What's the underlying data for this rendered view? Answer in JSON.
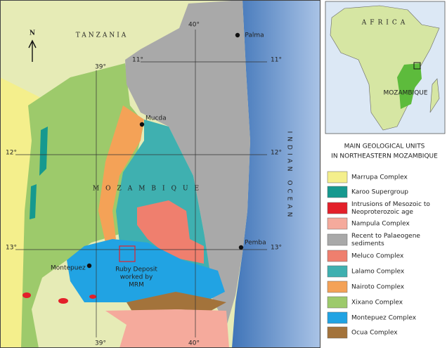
{
  "map": {
    "country_labels": {
      "tanzania": "TANZANIA",
      "mozambique": "MOZAMBIQUE",
      "ocean": "INDIAN OCEAN"
    },
    "north": "N",
    "grid_labels": {
      "top_40": "40°",
      "top_39": "39°",
      "lat_11_left": "11°",
      "lat_11_right": "11°",
      "lat_12_left": "12°",
      "lat_12_right": "12°",
      "lat_13_left": "13°",
      "lat_13_right": "13°",
      "bottom_39": "39°",
      "bottom_40": "40°"
    },
    "cities": [
      "Palma",
      "Mucda",
      "Pemba",
      "Montepuez"
    ],
    "ruby_deposit": [
      "Ruby Deposit",
      "worked by",
      "MRM"
    ]
  },
  "inset": {
    "continent": "AFRICA",
    "country": "MOZAMBIQUE"
  },
  "legend": {
    "title": [
      "MAIN GEOLOGICAL UNITS",
      "IN NORTHEASTERN MOZAMBIQUE"
    ],
    "items": [
      {
        "label": [
          "Marrupa Complex"
        ],
        "color": "#f4ef8c"
      },
      {
        "label": [
          "Karoo Supergroup"
        ],
        "color": "#16998f"
      },
      {
        "label": [
          "Intrusions of Mesozoic to",
          "Neoproterozoic age"
        ],
        "color": "#e3202a"
      },
      {
        "label": [
          "Nampula Complex"
        ],
        "color": "#f5aa9c"
      },
      {
        "label": [
          "Recent to Palaeogene",
          "sediments"
        ],
        "color": "#a9a9a9"
      },
      {
        "label": [
          "Meluco Complex"
        ],
        "color": "#ef7f6e"
      },
      {
        "label": [
          "Lalamo Complex"
        ],
        "color": "#3fb0b0"
      },
      {
        "label": [
          "Nairoto Complex"
        ],
        "color": "#f4a257"
      },
      {
        "label": [
          "Xixano Complex"
        ],
        "color": "#9dca6b"
      },
      {
        "label": [
          "Montepuez Complex"
        ],
        "color": "#21a3e3"
      },
      {
        "label": [
          "Ocua Complex"
        ],
        "color": "#a3733b"
      }
    ]
  }
}
